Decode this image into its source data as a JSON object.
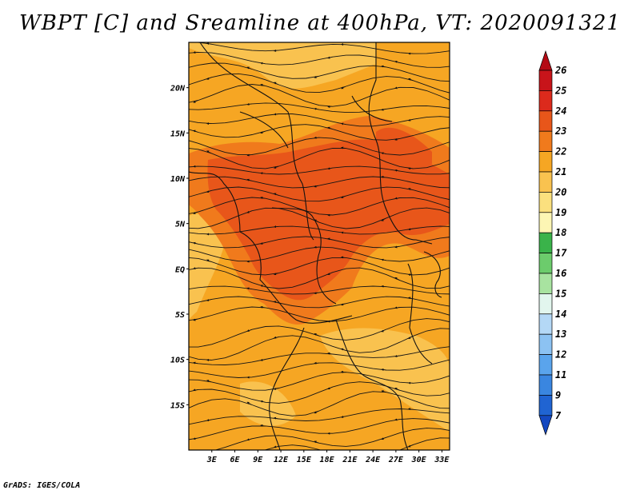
{
  "title": "WBPT [C] and Sreamline at 400hPa, VT: 2020091321",
  "credit": "GrADS: IGES/COLA",
  "map": {
    "lat_labels": [
      "20N",
      "15N",
      "10N",
      "5N",
      "EQ",
      "5S",
      "10S",
      "15S"
    ],
    "lon_labels": [
      "3E",
      "6E",
      "9E",
      "12E",
      "15E",
      "18E",
      "21E",
      "24E",
      "27E",
      "30E",
      "33E"
    ],
    "lat_values": [
      20,
      15,
      10,
      5,
      0,
      -5,
      -10,
      -15
    ],
    "lon_values": [
      3,
      6,
      9,
      12,
      15,
      18,
      21,
      24,
      27,
      30,
      33
    ],
    "lat_range": [
      -20,
      25
    ],
    "lon_range": [
      0,
      34
    ],
    "fill_colors": {
      "base": "#f6a623",
      "light": "#f9c24f",
      "warm": "#f07a1c",
      "hot": "#e8561a"
    }
  },
  "colorbar": {
    "labels": [
      "26",
      "25",
      "24",
      "23",
      "22",
      "21",
      "20",
      "19",
      "18",
      "17",
      "16",
      "15",
      "14",
      "13",
      "12",
      "11",
      "9",
      "7"
    ],
    "colors": [
      "#c8141a",
      "#dc2a1c",
      "#e8561a",
      "#f07a1c",
      "#f6a623",
      "#f9c24f",
      "#fbe07e",
      "#fdf6b4",
      "#3ab34a",
      "#6ccc6c",
      "#a8e3a0",
      "#e2f6ee",
      "#b4d8f6",
      "#8cc2f2",
      "#5aa4ec",
      "#3a86e0",
      "#2064d2"
    ],
    "top_color": "#b40a14",
    "bottom_color": "#1448c0"
  }
}
